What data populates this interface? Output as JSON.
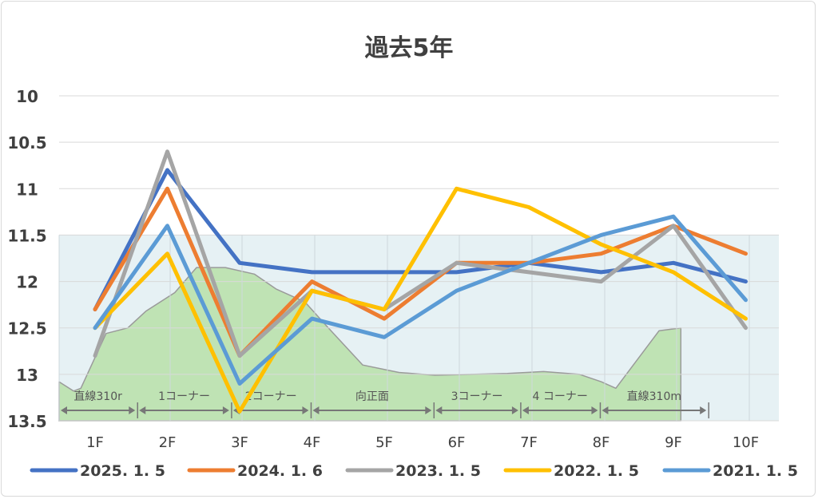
{
  "chart_data": {
    "type": "line",
    "title": "過去5年",
    "categories": [
      "1F",
      "2F",
      "3F",
      "4F",
      "5F",
      "6F",
      "7F",
      "8F",
      "9F",
      "10F"
    ],
    "y_ticks": [
      "10",
      "10.5",
      "11",
      "11.5",
      "12",
      "12.5",
      "13",
      "13.5"
    ],
    "ylim": [
      13.5,
      10
    ],
    "y_axis_inverted": true,
    "grid": true,
    "legend_position": "bottom",
    "series": [
      {
        "name": "2025. 1. 5",
        "color": "#4472c4",
        "values": [
          12.3,
          10.8,
          11.8,
          11.9,
          11.9,
          11.9,
          11.8,
          11.9,
          11.8,
          12.0
        ]
      },
      {
        "name": "2024. 1. 6",
        "color": "#ed7d31",
        "values": [
          12.3,
          11.0,
          12.8,
          12.0,
          12.4,
          11.8,
          11.8,
          11.7,
          11.4,
          11.7
        ]
      },
      {
        "name": "2023. 1. 5",
        "color": "#a5a5a5",
        "values": [
          12.8,
          10.6,
          12.8,
          12.1,
          12.3,
          11.8,
          11.9,
          12.0,
          11.4,
          12.5
        ]
      },
      {
        "name": "2022. 1. 5",
        "color": "#ffc000",
        "values": [
          12.5,
          11.7,
          13.4,
          12.1,
          12.3,
          11.0,
          11.2,
          11.6,
          11.9,
          12.4
        ]
      },
      {
        "name": "2021. 1. 5",
        "color": "#5b9bd5",
        "values": [
          12.5,
          11.4,
          13.1,
          12.4,
          12.6,
          12.1,
          11.8,
          11.5,
          11.3,
          12.2
        ]
      }
    ],
    "course_sections": [
      {
        "label": "直線310r",
        "from": 0.3,
        "to": 1.0
      },
      {
        "label": "1コーナー",
        "from": 1.0,
        "to": 2.3
      },
      {
        "label": "2コーナー",
        "from": 2.3,
        "to": 3.4
      },
      {
        "label": "向正面",
        "from": 3.4,
        "to": 5.1
      },
      {
        "label": "3コーナー",
        "from": 5.1,
        "to": 6.3
      },
      {
        "label": "4 コーナー",
        "from": 6.3,
        "to": 7.4
      },
      {
        "label": "直線310m",
        "from": 7.4,
        "to": 8.9
      }
    ],
    "course_elevation": {
      "x": [
        0.3,
        0.5,
        0.6,
        0.95,
        1.25,
        1.5,
        1.9,
        2.2,
        2.6,
        3.0,
        3.3,
        3.7,
        4.0,
        4.5,
        5.0,
        5.5,
        6.0,
        6.5,
        7.0,
        7.5,
        7.8,
        8.0,
        8.6,
        8.9
      ],
      "y": [
        13.08,
        13.18,
        13.15,
        12.56,
        12.5,
        12.32,
        12.12,
        11.85,
        11.85,
        11.92,
        12.08,
        12.22,
        12.48,
        12.9,
        12.98,
        13.01,
        13.0,
        12.99,
        12.97,
        13.0,
        13.08,
        13.15,
        12.53,
        12.5
      ]
    },
    "background_band": {
      "from": 11.5,
      "to": 13.5,
      "color": "#e6f1f4"
    },
    "elevation_color": "#bfe3b4"
  }
}
